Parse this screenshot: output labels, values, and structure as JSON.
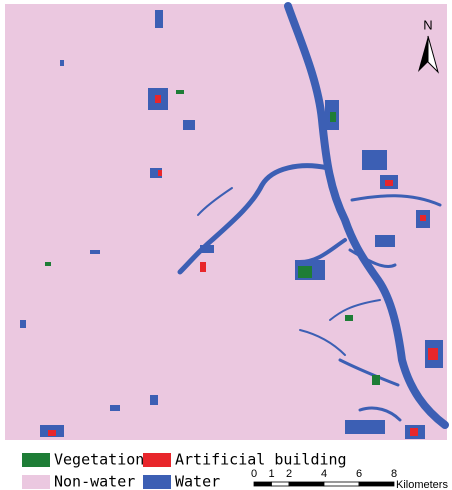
{
  "map": {
    "north_label": "N",
    "legend": [
      {
        "label": "Vegetation",
        "color": "#1e7d36"
      },
      {
        "label": "Artificial building",
        "color": "#e8262b"
      },
      {
        "label": "Non-water",
        "color": "#ebc8e0"
      },
      {
        "label": "Water",
        "color": "#3c5fb4"
      }
    ],
    "scale_bar": {
      "ticks": [
        0,
        1,
        2,
        4,
        6,
        8
      ],
      "unit": "Kilometers"
    }
  }
}
